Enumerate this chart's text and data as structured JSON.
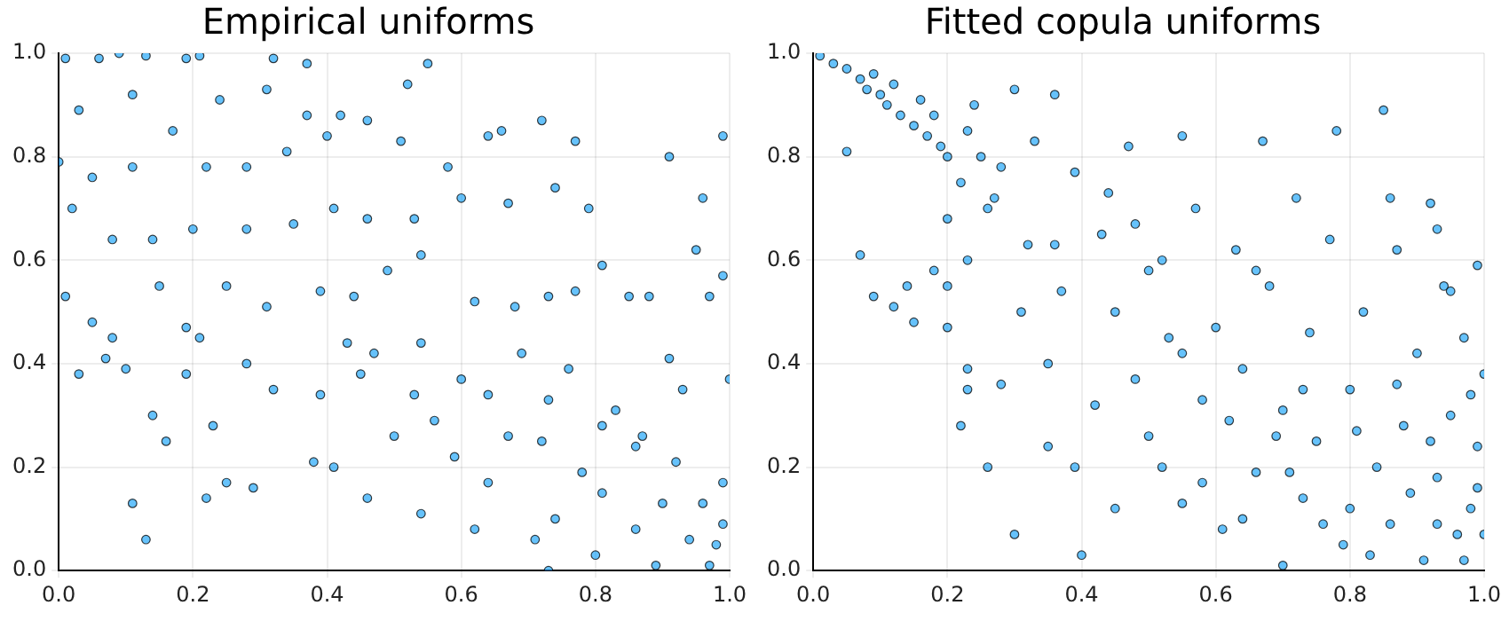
{
  "chart_data": [
    {
      "type": "scatter",
      "title": "Empirical uniforms",
      "grid": true,
      "legend": false,
      "marker": "circle",
      "xlim": [
        0,
        1
      ],
      "ylim": [
        0,
        1
      ],
      "xticks": [
        {
          "value": 0,
          "label": "0.0"
        },
        {
          "value": 0.2,
          "label": "0.2"
        },
        {
          "value": 0.4,
          "label": "0.4"
        },
        {
          "value": 0.6,
          "label": "0.6"
        },
        {
          "value": 0.8,
          "label": "0.8"
        },
        {
          "value": 1,
          "label": "1.0"
        }
      ],
      "yticks": [
        {
          "value": 0,
          "label": "0.0"
        },
        {
          "value": 0.2,
          "label": "0.2"
        },
        {
          "value": 0.4,
          "label": "0.4"
        },
        {
          "value": 0.6,
          "label": "0.6"
        },
        {
          "value": 0.8,
          "label": "0.8"
        },
        {
          "value": 1,
          "label": "1.0"
        }
      ],
      "series": [
        {
          "color": "#009af9",
          "x": [
            0.01,
            0.06,
            0.09,
            0.13,
            0.19,
            0.21,
            0.32,
            0.37,
            0.55,
            0.03,
            0.11,
            0.17,
            0.24,
            0.31,
            0.37,
            0.42,
            0.0,
            0.05,
            0.11,
            0.22,
            0.28,
            0.34,
            0.4,
            0.46,
            0.51,
            0.52,
            0.64,
            0.66,
            0.72,
            0.77,
            0.91,
            0.99,
            0.58,
            0.02,
            0.08,
            0.14,
            0.2,
            0.28,
            0.35,
            0.41,
            0.46,
            0.53,
            0.6,
            0.67,
            0.74,
            0.79,
            0.96,
            0.95,
            0.01,
            0.05,
            0.08,
            0.07,
            0.03,
            0.15,
            0.19,
            0.21,
            0.25,
            0.31,
            0.39,
            0.44,
            0.49,
            0.54,
            0.62,
            0.68,
            0.73,
            0.77,
            0.81,
            0.85,
            0.88,
            0.97,
            0.99,
            1.0,
            0.91,
            0.1,
            0.14,
            0.16,
            0.11,
            0.13,
            0.19,
            0.23,
            0.22,
            0.25,
            0.29,
            0.28,
            0.32,
            0.38,
            0.39,
            0.41,
            0.43,
            0.45,
            0.46,
            0.47,
            0.5,
            0.53,
            0.54,
            0.56,
            0.59,
            0.6,
            0.62,
            0.64,
            0.67,
            0.69,
            0.71,
            0.72,
            0.73,
            0.74,
            0.76,
            0.78,
            0.8,
            0.81,
            0.83,
            0.86,
            0.87,
            0.89,
            0.9,
            0.92,
            0.94,
            0.96,
            0.97,
            0.98,
            0.99,
            0.99,
            0.81,
            0.86,
            0.93,
            0.73,
            0.64,
            0.54
          ],
          "values": [
            0.99,
            0.99,
            1.0,
            0.995,
            0.99,
            0.995,
            0.99,
            0.98,
            0.98,
            0.89,
            0.92,
            0.85,
            0.91,
            0.93,
            0.88,
            0.88,
            0.79,
            0.76,
            0.78,
            0.78,
            0.78,
            0.81,
            0.84,
            0.87,
            0.83,
            0.94,
            0.84,
            0.85,
            0.87,
            0.83,
            0.8,
            0.84,
            0.78,
            0.7,
            0.64,
            0.64,
            0.66,
            0.66,
            0.67,
            0.7,
            0.68,
            0.68,
            0.72,
            0.71,
            0.74,
            0.7,
            0.72,
            0.62,
            0.53,
            0.48,
            0.45,
            0.41,
            0.38,
            0.55,
            0.47,
            0.45,
            0.55,
            0.51,
            0.54,
            0.53,
            0.58,
            0.61,
            0.52,
            0.51,
            0.53,
            0.54,
            0.59,
            0.53,
            0.53,
            0.53,
            0.57,
            0.37,
            0.41,
            0.39,
            0.3,
            0.25,
            0.13,
            0.06,
            0.38,
            0.28,
            0.14,
            0.17,
            0.16,
            0.4,
            0.35,
            0.21,
            0.34,
            0.2,
            0.44,
            0.38,
            0.14,
            0.42,
            0.26,
            0.34,
            0.11,
            0.29,
            0.22,
            0.37,
            0.08,
            0.17,
            0.26,
            0.42,
            0.06,
            0.25,
            0.0,
            0.1,
            0.39,
            0.19,
            0.03,
            0.15,
            0.31,
            0.08,
            0.26,
            0.01,
            0.13,
            0.21,
            0.06,
            0.13,
            0.01,
            0.05,
            0.17,
            0.09,
            0.28,
            0.24,
            0.35,
            0.33,
            0.34,
            0.44
          ]
        }
      ]
    },
    {
      "type": "scatter",
      "title": "Fitted copula uniforms",
      "grid": true,
      "legend": false,
      "marker": "circle",
      "xlim": [
        0,
        1
      ],
      "ylim": [
        0,
        1
      ],
      "xticks": [
        {
          "value": 0,
          "label": "0.0"
        },
        {
          "value": 0.2,
          "label": "0.2"
        },
        {
          "value": 0.4,
          "label": "0.4"
        },
        {
          "value": 0.6,
          "label": "0.6"
        },
        {
          "value": 0.8,
          "label": "0.8"
        },
        {
          "value": 1,
          "label": "1.0"
        }
      ],
      "yticks": [
        {
          "value": 0,
          "label": "0.0"
        },
        {
          "value": 0.2,
          "label": "0.2"
        },
        {
          "value": 0.4,
          "label": "0.4"
        },
        {
          "value": 0.6,
          "label": "0.6"
        },
        {
          "value": 0.8,
          "label": "0.8"
        },
        {
          "value": 1,
          "label": "1.0"
        }
      ],
      "series": [
        {
          "color": "#009af9",
          "x": [
            0.01,
            0.03,
            0.05,
            0.07,
            0.08,
            0.09,
            0.1,
            0.11,
            0.12,
            0.13,
            0.15,
            0.16,
            0.17,
            0.18,
            0.19,
            0.2,
            0.22,
            0.23,
            0.24,
            0.26,
            0.28,
            0.3,
            0.33,
            0.36,
            0.05,
            0.07,
            0.09,
            0.12,
            0.14,
            0.15,
            0.18,
            0.2,
            0.2,
            0.2,
            0.22,
            0.23,
            0.23,
            0.23,
            0.26,
            0.28,
            0.3,
            0.31,
            0.32,
            0.35,
            0.35,
            0.37,
            0.39,
            0.39,
            0.4,
            0.42,
            0.43,
            0.45,
            0.45,
            0.47,
            0.48,
            0.5,
            0.52,
            0.53,
            0.55,
            0.55,
            0.57,
            0.58,
            0.6,
            0.61,
            0.63,
            0.64,
            0.66,
            0.67,
            0.68,
            0.7,
            0.7,
            0.72,
            0.73,
            0.74,
            0.75,
            0.77,
            0.78,
            0.79,
            0.8,
            0.82,
            0.84,
            0.85,
            0.86,
            0.87,
            0.88,
            0.9,
            0.91,
            0.92,
            0.93,
            0.94,
            0.95,
            0.96,
            0.97,
            0.98,
            0.99,
            1.0,
            0.89,
            0.8,
            0.76,
            0.83,
            0.93,
            0.97,
            0.99,
            1.0,
            0.62,
            0.58,
            0.69,
            0.73,
            0.81,
            0.87,
            0.92,
            0.95,
            0.98,
            0.86,
            0.93,
            0.99,
            0.66,
            0.44,
            0.48,
            0.36,
            0.27,
            0.25,
            0.52,
            0.55,
            0.5,
            0.64,
            0.71
          ],
          "values": [
            0.995,
            0.98,
            0.97,
            0.95,
            0.93,
            0.96,
            0.92,
            0.9,
            0.94,
            0.88,
            0.86,
            0.91,
            0.84,
            0.88,
            0.82,
            0.8,
            0.75,
            0.85,
            0.9,
            0.7,
            0.78,
            0.93,
            0.83,
            0.92,
            0.81,
            0.61,
            0.53,
            0.51,
            0.55,
            0.48,
            0.58,
            0.47,
            0.55,
            0.68,
            0.28,
            0.39,
            0.35,
            0.6,
            0.2,
            0.36,
            0.07,
            0.5,
            0.63,
            0.4,
            0.24,
            0.54,
            0.2,
            0.77,
            0.03,
            0.32,
            0.65,
            0.12,
            0.5,
            0.82,
            0.37,
            0.58,
            0.2,
            0.45,
            0.84,
            0.13,
            0.7,
            0.33,
            0.47,
            0.08,
            0.62,
            0.39,
            0.19,
            0.83,
            0.55,
            0.01,
            0.31,
            0.72,
            0.14,
            0.46,
            0.25,
            0.64,
            0.85,
            0.05,
            0.35,
            0.5,
            0.2,
            0.89,
            0.09,
            0.62,
            0.28,
            0.42,
            0.02,
            0.71,
            0.18,
            0.55,
            0.3,
            0.07,
            0.45,
            0.12,
            0.24,
            0.38,
            0.15,
            0.12,
            0.09,
            0.03,
            0.09,
            0.02,
            0.16,
            0.07,
            0.29,
            0.17,
            0.26,
            0.35,
            0.27,
            0.36,
            0.25,
            0.54,
            0.34,
            0.72,
            0.66,
            0.59,
            0.58,
            0.73,
            0.67,
            0.63,
            0.72,
            0.8,
            0.6,
            0.42,
            0.26,
            0.1,
            0.19
          ]
        }
      ]
    }
  ]
}
